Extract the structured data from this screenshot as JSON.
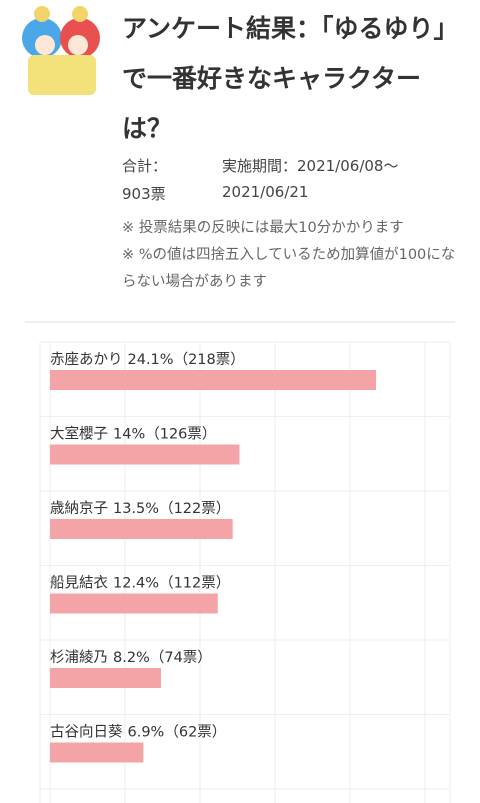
{
  "header": {
    "title": "アンケート結果：「ゆるゆり」で一番好きなキャラクターは？"
  },
  "summary": {
    "total_label": "合計：",
    "total": "903票",
    "period_label": "実施期間：2021/06/08〜",
    "period_end": "2021/06/21"
  },
  "notes": [
    "※ 投票結果の反映には最大10分かかります",
    "※ %の値は四捨五入しているため加算値が100にならない場合があります"
  ],
  "chart_data": {
    "type": "bar",
    "orientation": "horizontal",
    "color": "#f4a4a6",
    "categories": [
      "赤座あかり",
      "大室櫻子",
      "歳納京子",
      "船見結衣",
      "杉浦綾乃",
      "古谷向日葵"
    ],
    "values": [
      24.1,
      14,
      13.5,
      12.4,
      8.2,
      6.9
    ],
    "value_labels": [
      "24.1%",
      "14%",
      "13.5%",
      "12.4%",
      "8.2%",
      "6.9%"
    ],
    "votes": [
      218,
      126,
      122,
      112,
      74,
      62
    ],
    "vote_labels": [
      "（218票）",
      "（126票）",
      "（122票）",
      "（112票）",
      "（74票）",
      "（62票）"
    ]
  }
}
